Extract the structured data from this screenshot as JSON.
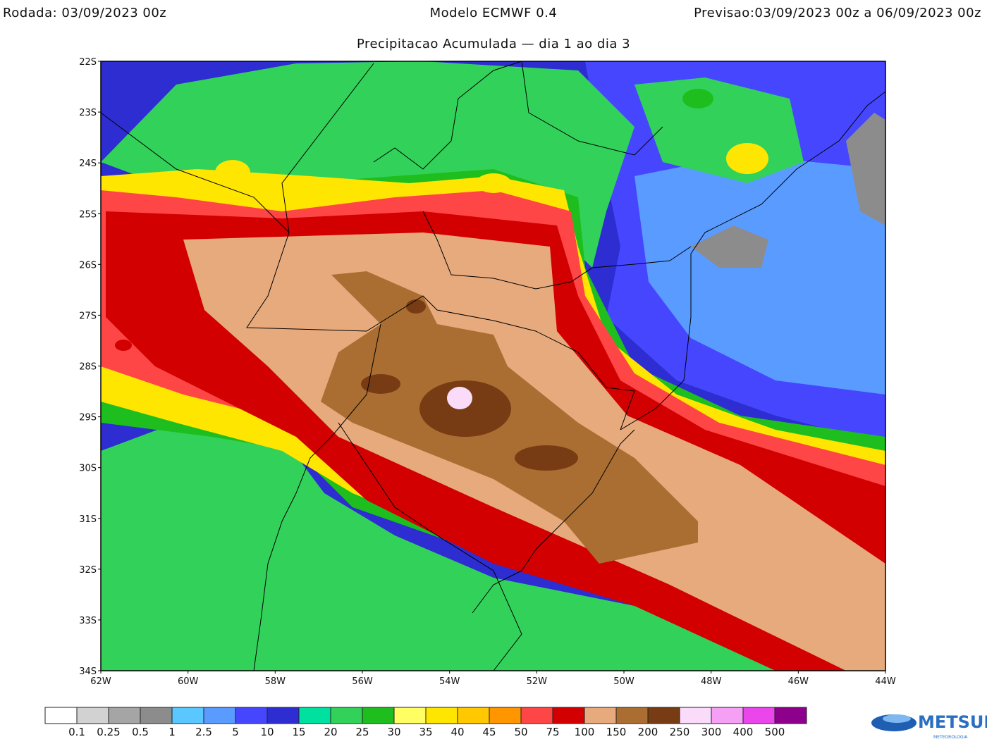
{
  "header": {
    "run": "Rodada: 03/09/2023 00z",
    "model": "Modelo ECMWF 0.4",
    "forecast": "Previsao:03/09/2023 00z a 06/09/2023 00z",
    "subtitle": "Precipitacao Acumulada — dia 1 ao dia 3"
  },
  "map": {
    "lat_labels": [
      "22S",
      "23S",
      "24S",
      "25S",
      "26S",
      "27S",
      "28S",
      "29S",
      "30S",
      "31S",
      "32S",
      "33S",
      "34S"
    ],
    "lon_labels": [
      "62W",
      "60W",
      "58W",
      "56W",
      "54W",
      "52W",
      "50W",
      "48W",
      "46W",
      "44W"
    ]
  },
  "colorbar": {
    "labels": [
      "0.1",
      "0.25",
      "0.5",
      "1",
      "2.5",
      "5",
      "10",
      "15",
      "20",
      "25",
      "30",
      "35",
      "40",
      "45",
      "50",
      "75",
      "100",
      "150",
      "200",
      "250",
      "300",
      "400",
      "500"
    ],
    "colors": [
      "#ffffff",
      "#d2d2d2",
      "#a5a5a5",
      "#8c8c8c",
      "#5ac8ff",
      "#5a9bff",
      "#4646ff",
      "#2d2dd2",
      "#00e1a0",
      "#32d25a",
      "#1ebe1e",
      "#ffff64",
      "#ffe600",
      "#ffc800",
      "#ff9600",
      "#ff4646",
      "#d20000",
      "#e6aa7d",
      "#aa6e32",
      "#783c14",
      "#fadcfa",
      "#f5a0f5",
      "#eb46eb",
      "#8c008c"
    ]
  },
  "logo": {
    "name": "METSUL",
    "tagline": "METEOROLOGIA"
  }
}
